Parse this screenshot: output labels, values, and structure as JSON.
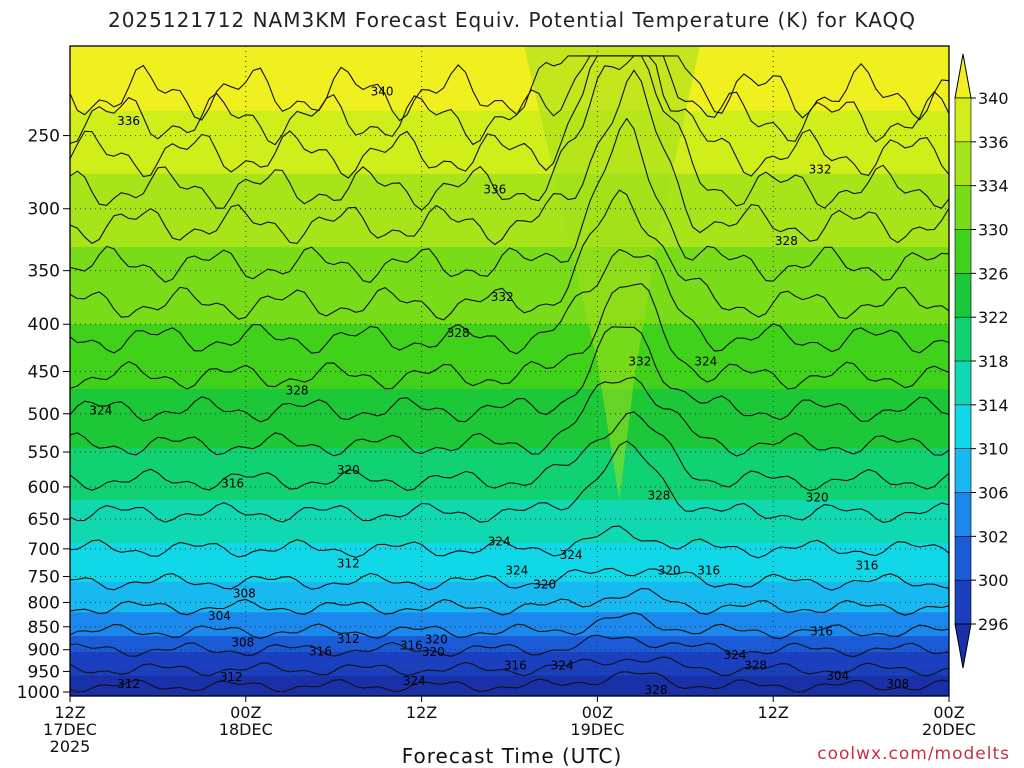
{
  "title": "2025121712 NAM3KM Forecast Equiv. Potential Temperature (K) for KAQQ",
  "credit": "coolwx.com/modelts",
  "colors": {
    "ground": "#8b4a2b",
    "gridline": "#333333",
    "contour": "#111111"
  },
  "chart_data": {
    "type": "heatmap",
    "title": "2025121712 NAM3KM Forecast Equiv. Potential Temperature (K) for KAQQ",
    "xlabel": "Forecast Time (UTC)",
    "ylabel": "",
    "x_range_hours": [
      0,
      60
    ],
    "y_log_scale": true,
    "y_range_hpa": [
      200,
      1010
    ],
    "y_ticks": [
      "250",
      "300",
      "350",
      "400",
      "450",
      "500",
      "550",
      "600",
      "650",
      "700",
      "750",
      "800",
      "850",
      "900",
      "950",
      "1000"
    ],
    "x_ticks": [
      {
        "hour": 0,
        "lines": [
          "12Z",
          "17DEC",
          "2025"
        ]
      },
      {
        "hour": 12,
        "lines": [
          "00Z",
          "18DEC"
        ]
      },
      {
        "hour": 24,
        "lines": [
          "12Z"
        ]
      },
      {
        "hour": 36,
        "lines": [
          "00Z",
          "19DEC"
        ]
      },
      {
        "hour": 48,
        "lines": [
          "12Z"
        ]
      },
      {
        "hour": 60,
        "lines": [
          "00Z",
          "20DEC"
        ]
      }
    ],
    "colorbar": {
      "labels": [
        "340",
        "336",
        "334",
        "330",
        "326",
        "322",
        "318",
        "314",
        "310",
        "306",
        "302",
        "300",
        "296"
      ],
      "colors": [
        "#f0f020",
        "#d2ee1a",
        "#a8e41a",
        "#78dc18",
        "#40d21a",
        "#1cc838",
        "#10d272",
        "#10d8b0",
        "#10d8e8",
        "#18b8f0",
        "#1a88ec",
        "#1a5cd8",
        "#1a40c0",
        "#1a30a8"
      ]
    },
    "contour_labels": [
      {
        "text": "340",
        "hour": 21.3,
        "hpa": 224
      },
      {
        "text": "336",
        "hour": 4.0,
        "hpa": 241
      },
      {
        "text": "336",
        "hour": 29.0,
        "hpa": 286
      },
      {
        "text": "332",
        "hour": 51.2,
        "hpa": 272
      },
      {
        "text": "328",
        "hour": 48.9,
        "hpa": 325
      },
      {
        "text": "332",
        "hour": 29.5,
        "hpa": 374
      },
      {
        "text": "328",
        "hour": 26.5,
        "hpa": 409
      },
      {
        "text": "332",
        "hour": 38.9,
        "hpa": 439
      },
      {
        "text": "324",
        "hour": 43.4,
        "hpa": 439
      },
      {
        "text": "328",
        "hour": 15.5,
        "hpa": 472
      },
      {
        "text": "324",
        "hour": 2.1,
        "hpa": 496
      },
      {
        "text": "320",
        "hour": 19.0,
        "hpa": 575
      },
      {
        "text": "316",
        "hour": 11.1,
        "hpa": 595
      },
      {
        "text": "328",
        "hour": 40.2,
        "hpa": 613
      },
      {
        "text": "320",
        "hour": 51.0,
        "hpa": 616
      },
      {
        "text": "324",
        "hour": 29.3,
        "hpa": 687
      },
      {
        "text": "324",
        "hour": 34.2,
        "hpa": 711
      },
      {
        "text": "312",
        "hour": 19.0,
        "hpa": 726
      },
      {
        "text": "324",
        "hour": 30.5,
        "hpa": 739
      },
      {
        "text": "320",
        "hour": 40.9,
        "hpa": 739
      },
      {
        "text": "316",
        "hour": 43.6,
        "hpa": 739
      },
      {
        "text": "316",
        "hour": 54.4,
        "hpa": 730
      },
      {
        "text": "320",
        "hour": 32.4,
        "hpa": 765
      },
      {
        "text": "308",
        "hour": 11.9,
        "hpa": 782
      },
      {
        "text": "304",
        "hour": 10.2,
        "hpa": 827
      },
      {
        "text": "312",
        "hour": 19.0,
        "hpa": 876
      },
      {
        "text": "308",
        "hour": 11.8,
        "hpa": 884
      },
      {
        "text": "320",
        "hour": 25.0,
        "hpa": 877
      },
      {
        "text": "316",
        "hour": 23.3,
        "hpa": 891
      },
      {
        "text": "316",
        "hour": 17.1,
        "hpa": 904
      },
      {
        "text": "316",
        "hour": 51.3,
        "hpa": 860
      },
      {
        "text": "320",
        "hour": 24.8,
        "hpa": 905
      },
      {
        "text": "324",
        "hour": 45.4,
        "hpa": 912
      },
      {
        "text": "316",
        "hour": 30.4,
        "hpa": 936
      },
      {
        "text": "324",
        "hour": 33.6,
        "hpa": 936
      },
      {
        "text": "328",
        "hour": 46.8,
        "hpa": 936
      },
      {
        "text": "312",
        "hour": 11.0,
        "hpa": 963
      },
      {
        "text": "324",
        "hour": 23.5,
        "hpa": 973
      },
      {
        "text": "304",
        "hour": 52.4,
        "hpa": 961
      },
      {
        "text": "312",
        "hour": 4.0,
        "hpa": 980
      },
      {
        "text": "308",
        "hour": 56.5,
        "hpa": 980
      },
      {
        "text": "328",
        "hour": 40.0,
        "hpa": 995
      }
    ]
  }
}
